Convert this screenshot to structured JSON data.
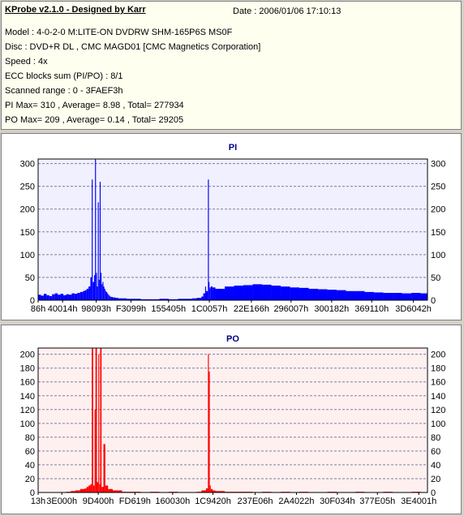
{
  "header": {
    "app_title": "KProbe v2.1.0 - Designed by Karr",
    "date": "Date : 2006/01/06 17:10:13",
    "model": "Model : 4-0-2-0 M:LITE-ON DVDRW SHM-165P6S MS0F",
    "disc": "Disc : DVD+R DL , CMC MAGD01 [CMC Magnetics Corporation]",
    "speed": "Speed : 4x",
    "ecc": "ECC blocks sum (PI/PO) : 8/1",
    "scanned_range": "Scanned range : 0 - 3FAEF3h",
    "pi_stats": "PI Max= 310 , Average= 8.98 , Total= 277934",
    "po_stats": "PO Max= 209 , Average= 0.14 , Total= 29205"
  },
  "chart_data": [
    {
      "type": "bar",
      "title": "PI",
      "color": "#0000ff",
      "background": "#f0f0ff",
      "grid": true,
      "ylim": [
        0,
        310
      ],
      "yticks": [
        0,
        50,
        100,
        150,
        200,
        250,
        300
      ],
      "xlim": [
        0,
        4173555
      ],
      "xticks": [
        "86h",
        "40014h",
        "98093h",
        "F3099h",
        "155405h",
        "1C0057h",
        "22E166h",
        "296007h",
        "300182h",
        "369110h",
        "3D6042h"
      ],
      "x": [
        86,
        262164,
        622739,
        995481,
        1397765,
        1835095,
        2286054,
        2711559,
        3146114,
        3576080,
        4022338
      ],
      "series": [
        {
          "x": [
            0,
            30000,
            60000,
            90000,
            120000,
            150000,
            180000,
            210000,
            240000,
            270000,
            300000,
            330000,
            360000,
            390000,
            420000,
            450000,
            480000,
            500000,
            520000,
            540000,
            560000,
            575000,
            585000,
            600000,
            610000,
            620000,
            630000,
            640000,
            650000,
            660000,
            670000,
            680000,
            690000,
            700000,
            710000,
            720000,
            730000,
            740000,
            750000,
            760000,
            770000,
            780000,
            800000,
            830000,
            860000,
            900000,
            950000,
            1000000,
            1100000,
            1200000,
            1300000,
            1400000,
            1500000,
            1600000,
            1650000,
            1700000,
            1750000,
            1770000,
            1790000,
            1800000,
            1820000,
            1830000,
            1835000,
            1840000,
            1850000,
            1870000,
            1900000,
            2000000,
            2100000,
            2200000,
            2300000,
            2400000,
            2500000,
            2600000,
            2700000,
            2800000,
            2900000,
            3000000,
            3100000,
            3200000,
            3300000,
            3400000,
            3500000,
            3600000,
            3700000,
            3800000,
            3900000,
            4000000,
            4100000,
            4170000
          ],
          "values": [
            12,
            10,
            14,
            11,
            9,
            13,
            15,
            12,
            14,
            11,
            13,
            12,
            15,
            14,
            16,
            18,
            20,
            22,
            25,
            30,
            50,
            265,
            40,
            55,
            310,
            60,
            30,
            215,
            45,
            260,
            60,
            35,
            40,
            30,
            25,
            20,
            18,
            15,
            12,
            10,
            8,
            7,
            6,
            5,
            4,
            4,
            3,
            3,
            2,
            2,
            3,
            2,
            3,
            3,
            4,
            5,
            8,
            15,
            30,
            20,
            265,
            40,
            25,
            28,
            30,
            28,
            25,
            30,
            32,
            33,
            35,
            34,
            32,
            30,
            28,
            27,
            25,
            24,
            23,
            22,
            20,
            20,
            18,
            17,
            16,
            16,
            15,
            16,
            15,
            15
          ]
        }
      ]
    },
    {
      "type": "bar",
      "title": "PO",
      "color": "#ff0000",
      "background": "#fff0f0",
      "grid": true,
      "ylim": [
        0,
        209
      ],
      "yticks": [
        0,
        20,
        40,
        60,
        80,
        100,
        120,
        140,
        160,
        180,
        200
      ],
      "xlim": [
        0,
        4173555
      ],
      "xticks": [
        "13h",
        "3E000h",
        "9D400h",
        "FD619h",
        "160030h",
        "1C9420h",
        "237E06h",
        "2A4022h",
        "30F034h",
        "377E05h",
        "3E4001h"
      ],
      "x": [
        19,
        253952,
        644096,
        1037849,
        1441840,
        1873952,
        2326022,
        2768930,
        3207220,
        3636741,
        4079617
      ],
      "series": [
        {
          "x": [
            0,
            100000,
            200000,
            300000,
            350000,
            400000,
            450000,
            500000,
            520000,
            540000,
            560000,
            575000,
            590000,
            605000,
            615000,
            630000,
            645000,
            655000,
            665000,
            680000,
            700000,
            720000,
            750000,
            800000,
            900000,
            1000000,
            1100000,
            1200000,
            1300000,
            1400000,
            1500000,
            1600000,
            1700000,
            1750000,
            1800000,
            1820000,
            1830000,
            1840000,
            1850000,
            1870000,
            1900000,
            2000000,
            2100000,
            2200000,
            2300000,
            2400000,
            2500000,
            2600000,
            2700000,
            2800000,
            2900000,
            3000000,
            3100000,
            3200000,
            3300000,
            3400000,
            3500000,
            3600000,
            3700000,
            3800000,
            3900000,
            4000000,
            4100000,
            4170000
          ],
          "values": [
            0,
            0,
            0,
            1,
            2,
            3,
            5,
            6,
            8,
            10,
            12,
            209,
            10,
            120,
            209,
            15,
            200,
            12,
            209,
            8,
            70,
            10,
            5,
            3,
            1,
            1,
            0,
            1,
            0,
            1,
            0,
            0,
            1,
            3,
            6,
            200,
            175,
            10,
            5,
            3,
            2,
            1,
            1,
            1,
            0,
            1,
            0,
            1,
            0,
            1,
            0,
            0,
            1,
            0,
            0,
            1,
            0,
            0,
            1,
            0,
            0,
            1,
            0,
            0
          ]
        }
      ]
    }
  ]
}
